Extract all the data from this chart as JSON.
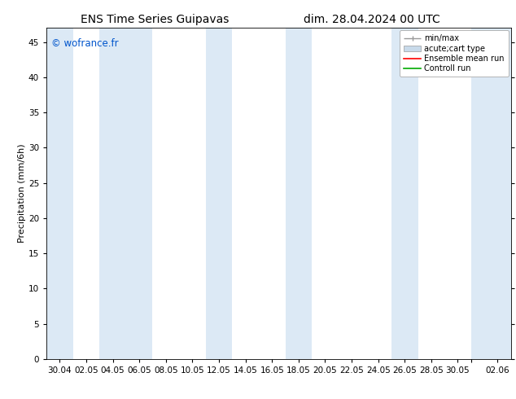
{
  "title_left": "ENS Time Series Guipavas",
  "title_right": "dim. 28.04.2024 00 UTC",
  "ylabel": "Precipitation (mm/6h)",
  "ylim": [
    0,
    47
  ],
  "yticks": [
    0,
    5,
    10,
    15,
    20,
    25,
    30,
    35,
    40,
    45
  ],
  "xtick_labels": [
    "30.04",
    "02.05",
    "04.05",
    "06.05",
    "08.05",
    "10.05",
    "12.05",
    "14.05",
    "16.05",
    "18.05",
    "20.05",
    "22.05",
    "24.05",
    "26.05",
    "28.05",
    "30.05",
    "",
    "02.06"
  ],
  "xtick_positions": [
    0,
    2,
    4,
    6,
    8,
    10,
    12,
    14,
    16,
    18,
    20,
    22,
    24,
    26,
    28,
    30,
    31,
    33
  ],
  "xmin": -1,
  "xmax": 34,
  "shaded_bands": [
    [
      -1.0,
      1.0
    ],
    [
      3.0,
      7.0
    ],
    [
      11.0,
      13.0
    ],
    [
      17.0,
      19.0
    ],
    [
      25.0,
      27.0
    ],
    [
      31.0,
      34.0
    ]
  ],
  "shaded_color": "#dce9f5",
  "background_color": "#ffffff",
  "watermark_text": "© wofrance.fr",
  "watermark_color": "#0055cc",
  "legend_entries": [
    "min/max",
    "acute;cart type",
    "Ensemble mean run",
    "Controll run"
  ],
  "legend_line_colors": [
    "#999999",
    "#c8daea",
    "#ff0000",
    "#00aa00"
  ],
  "title_fontsize": 10,
  "axis_label_fontsize": 8,
  "tick_fontsize": 7.5
}
